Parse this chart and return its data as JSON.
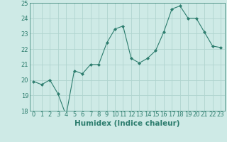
{
  "x": [
    0,
    1,
    2,
    3,
    4,
    5,
    6,
    7,
    8,
    9,
    10,
    11,
    12,
    13,
    14,
    15,
    16,
    17,
    18,
    19,
    20,
    21,
    22,
    23
  ],
  "y": [
    19.9,
    19.7,
    20.0,
    19.1,
    17.7,
    20.6,
    20.4,
    21.0,
    21.0,
    22.4,
    23.3,
    23.5,
    21.4,
    21.1,
    21.4,
    21.9,
    23.1,
    24.6,
    24.8,
    24.0,
    24.0,
    23.1,
    22.2,
    22.1
  ],
  "line_color": "#2d7d6e",
  "marker": "D",
  "marker_size": 2,
  "bg_color": "#ceeae6",
  "grid_color": "#b0d4cf",
  "xlabel": "Humidex (Indice chaleur)",
  "ylim": [
    18,
    25
  ],
  "yticks": [
    18,
    19,
    20,
    21,
    22,
    23,
    24,
    25
  ],
  "xticks": [
    0,
    1,
    2,
    3,
    4,
    5,
    6,
    7,
    8,
    9,
    10,
    11,
    12,
    13,
    14,
    15,
    16,
    17,
    18,
    19,
    20,
    21,
    22,
    23
  ],
  "xlabel_fontsize": 7.5,
  "tick_fontsize": 6
}
